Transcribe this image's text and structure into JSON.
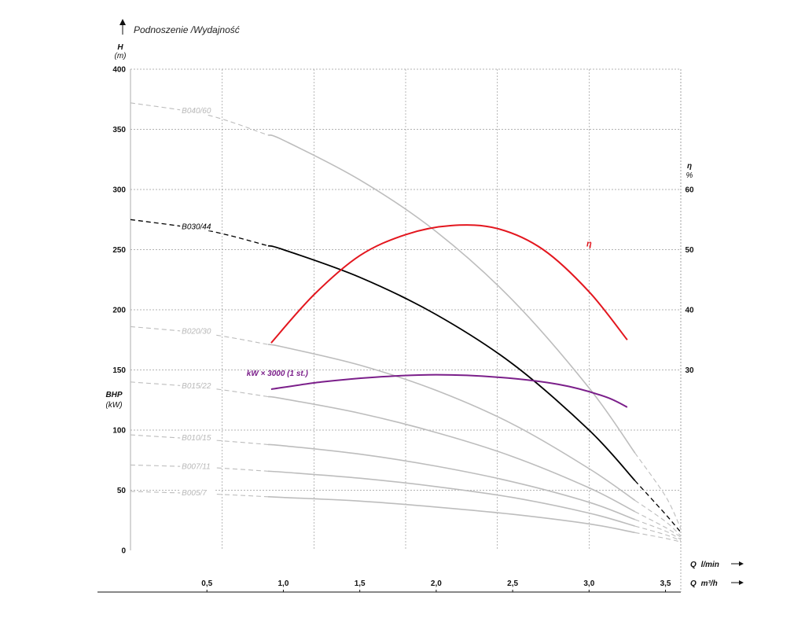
{
  "chart_data": {
    "type": "line",
    "title": "Podnoszenie /Wydajność",
    "y_left": {
      "label": "H",
      "unit": "(m)",
      "range": [
        0,
        400
      ],
      "ticks": [
        "0",
        "50",
        "100",
        "150",
        "200",
        "250",
        "300",
        "350",
        "400"
      ]
    },
    "y_left_secondary": {
      "label": "BHP",
      "unit": "(kW)"
    },
    "y_right": {
      "label": "η",
      "unit": "%",
      "range": [
        0,
        80
      ],
      "ticks": [
        "30",
        "40",
        "50",
        "60"
      ]
    },
    "x_top": {
      "label": "Q",
      "unit": "l/min",
      "range": [
        0,
        60
      ],
      "ticks": [
        "",
        "",
        "",
        "",
        "",
        ""
      ]
    },
    "x_bottom": {
      "label": "Q",
      "unit": "m³/h",
      "range": [
        0,
        3.6
      ],
      "ticks": [
        "0,5",
        "1,0",
        "1,5",
        "2,0",
        "2,5",
        "3,0",
        "3,5"
      ]
    },
    "grid": true,
    "series": [
      {
        "name": "B040/60",
        "color": "#bdbdbd",
        "label_at": 1.35,
        "x": [
          0,
          0.5,
          1.0,
          1.5,
          2.0,
          2.5,
          3.0,
          3.5,
          3.6
        ],
        "y": [
          372,
          362,
          341,
          308,
          265,
          208,
          135,
          45,
          18
        ]
      },
      {
        "name": "B030/44",
        "color": "#000000",
        "label_at": 1.35,
        "x": [
          0,
          0.5,
          1.0,
          1.5,
          2.0,
          2.5,
          3.0,
          3.5,
          3.6
        ],
        "y": [
          275,
          266,
          250,
          227,
          196,
          155,
          100,
          30,
          15
        ]
      },
      {
        "name": "B020/30",
        "color": "#bdbdbd",
        "label_at": 1.35,
        "x": [
          0,
          0.5,
          1.0,
          1.5,
          2.0,
          2.5,
          3.0,
          3.5,
          3.6
        ],
        "y": [
          186,
          180,
          169,
          154,
          133,
          105,
          68,
          24,
          12
        ]
      },
      {
        "name": "B015/22",
        "color": "#bdbdbd",
        "label_at": 1.35,
        "x": [
          0,
          0.5,
          1.0,
          1.5,
          2.0,
          2.5,
          3.0,
          3.5,
          3.6
        ],
        "y": [
          140,
          135,
          126,
          114,
          98,
          78,
          52,
          19,
          11
        ]
      },
      {
        "name": "B010/15",
        "color": "#bdbdbd",
        "label_at": 1.35,
        "x": [
          0,
          0.5,
          1.0,
          1.5,
          2.0,
          2.5,
          3.0,
          3.5,
          3.6
        ],
        "y": [
          96,
          92,
          87,
          80,
          70,
          57,
          40,
          16,
          9
        ]
      },
      {
        "name": "B007/11",
        "color": "#bdbdbd",
        "label_at": 1.35,
        "x": [
          0,
          0.5,
          1.0,
          1.5,
          2.0,
          2.5,
          3.0,
          3.5,
          3.6
        ],
        "y": [
          71,
          69,
          65,
          60,
          53,
          44,
          31,
          13,
          8
        ]
      },
      {
        "name": "B005/7",
        "color": "#bdbdbd",
        "label_at": 1.35,
        "x": [
          0,
          0.5,
          1.0,
          1.5,
          2.0,
          2.5,
          3.0,
          3.5,
          3.6
        ],
        "y": [
          49,
          47,
          44,
          41,
          36,
          30,
          22,
          10,
          7
        ]
      }
    ],
    "efficiency": {
      "name": "η",
      "color": "#e3161e",
      "axis": "right",
      "x": [
        0.92,
        1.2,
        1.5,
        1.8,
        2.1,
        2.4,
        2.7,
        3.0,
        3.25
      ],
      "y": [
        34.5,
        42.5,
        49,
        52.5,
        54,
        53.5,
        50,
        43,
        35
      ]
    },
    "power": {
      "name": "kW × 3000 (1 st.)",
      "color": "#7b1f8a",
      "axis": "left",
      "x": [
        0.92,
        1.25,
        1.6,
        2.0,
        2.4,
        2.8,
        3.1,
        3.25
      ],
      "y": [
        134,
        140,
        144,
        146,
        144,
        138,
        128,
        119
      ]
    }
  }
}
